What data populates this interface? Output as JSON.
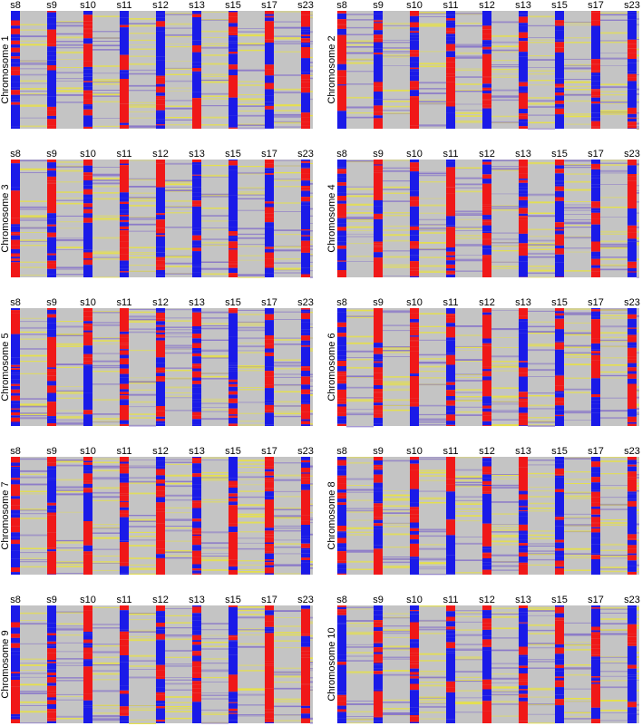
{
  "panels": [
    {
      "label": "Chromosome 1",
      "columns": [
        "s8",
        "s9",
        "s10",
        "s11",
        "s12",
        "s13",
        "s15",
        "s17",
        "s23"
      ]
    },
    {
      "label": "Chromosome 2",
      "columns": [
        "s8",
        "s9",
        "s10",
        "s11",
        "s12",
        "s13",
        "s15",
        "s17",
        "s23"
      ]
    },
    {
      "label": "Chromosome 3",
      "columns": [
        "s8",
        "s9",
        "s10",
        "s11",
        "s12",
        "s13",
        "s15",
        "s17",
        "s23"
      ]
    },
    {
      "label": "Chromosome 4",
      "columns": [
        "s8",
        "s9",
        "s10",
        "s11",
        "s12",
        "s13",
        "s15",
        "s17",
        "s23"
      ]
    },
    {
      "label": "Chromosome 5",
      "columns": [
        "s8",
        "s9",
        "s10",
        "s11",
        "s12",
        "s13",
        "s15",
        "s17",
        "s23"
      ]
    },
    {
      "label": "Chromosome 6",
      "columns": [
        "s8",
        "s9",
        "s10",
        "s11",
        "s12",
        "s13",
        "s15",
        "s17",
        "s23"
      ]
    },
    {
      "label": "Chromosome 7",
      "columns": [
        "s8",
        "s9",
        "s10",
        "s11",
        "s12",
        "s13",
        "s15",
        "s17",
        "s23"
      ]
    },
    {
      "label": "Chromosome 8",
      "columns": [
        "s8",
        "s9",
        "s10",
        "s11",
        "s12",
        "s13",
        "s15",
        "s17",
        "s23"
      ]
    },
    {
      "label": "Chromosome 9",
      "columns": [
        "s8",
        "s9",
        "s10",
        "s11",
        "s12",
        "s13",
        "s15",
        "s17",
        "s23"
      ]
    },
    {
      "label": "Chromosome 10",
      "columns": [
        "s8",
        "s9",
        "s10",
        "s11",
        "s12",
        "s13",
        "s15",
        "s17",
        "s23"
      ]
    }
  ]
}
